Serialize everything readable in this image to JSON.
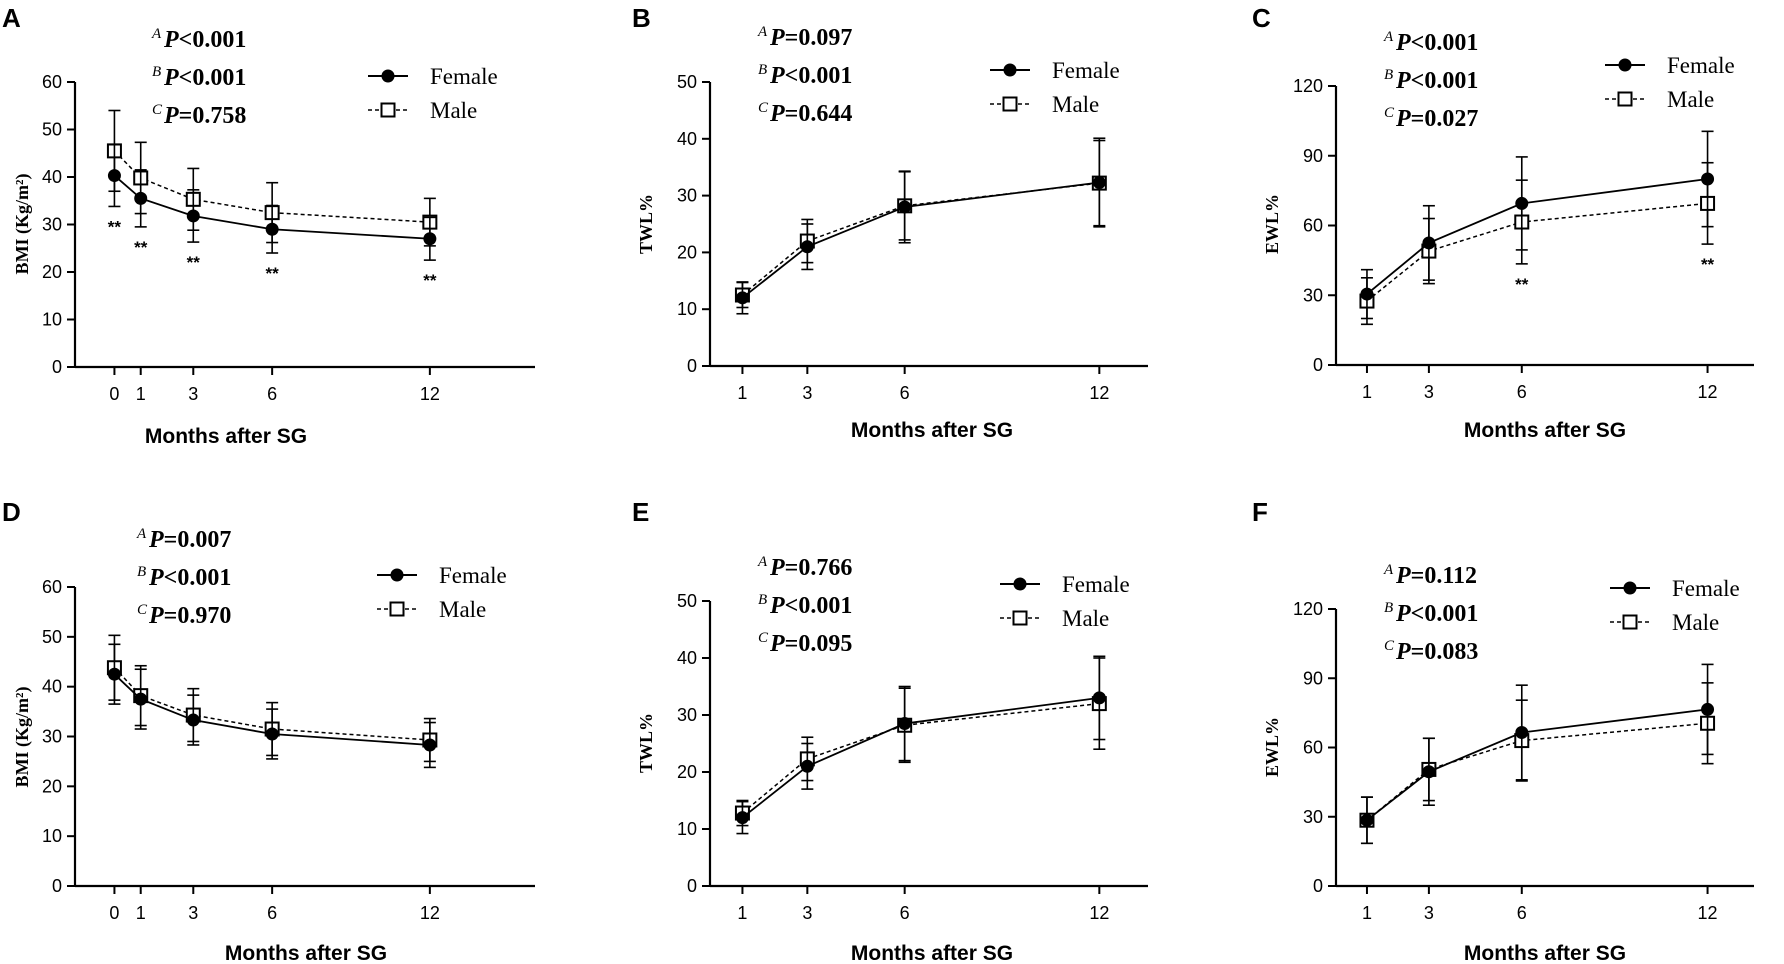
{
  "figure": {
    "legend": {
      "female": "Female",
      "male": "Male"
    },
    "colors": {
      "ink": "#000000",
      "marker_fill_male": "#ffffff"
    }
  },
  "chart_data": [
    {
      "panel": "A",
      "type": "line",
      "xlabel": "Months after SG",
      "ylabel": "BMI (Kg/m²)",
      "xticks": [
        0,
        1,
        3,
        6,
        12
      ],
      "xlim": [
        -1.5,
        16
      ],
      "ylim": [
        0,
        60
      ],
      "yticks": [
        0,
        10,
        20,
        30,
        40,
        50,
        60
      ],
      "stats": [
        [
          "A",
          "<0.001"
        ],
        [
          "B",
          "<0.001"
        ],
        [
          "C",
          "=0.758"
        ]
      ],
      "series": [
        {
          "name": "Female",
          "x": [
            0,
            1,
            3,
            6,
            12
          ],
          "values": [
            40.3,
            35.5,
            31.8,
            29.0,
            27.0
          ],
          "err": [
            6.5,
            6.0,
            5.5,
            5.0,
            4.5
          ]
        },
        {
          "name": "Male",
          "x": [
            0,
            1,
            3,
            6,
            12
          ],
          "values": [
            45.5,
            39.8,
            35.3,
            32.5,
            30.5
          ],
          "err": [
            8.5,
            7.5,
            6.5,
            6.3,
            5.0
          ]
        }
      ],
      "annotations": [
        [
          0,
          "**"
        ],
        [
          1,
          "**"
        ],
        [
          3,
          "**"
        ],
        [
          6,
          "**"
        ],
        [
          12,
          "**"
        ]
      ]
    },
    {
      "panel": "B",
      "type": "line",
      "xlabel": "Months after SG",
      "ylabel": "TWL%",
      "xticks": [
        1,
        3,
        6,
        12
      ],
      "xlim": [
        0,
        13.5
      ],
      "ylim": [
        0,
        50
      ],
      "yticks": [
        0,
        10,
        20,
        30,
        40,
        50
      ],
      "stats": [
        [
          "A",
          "=0.097"
        ],
        [
          "B",
          "<0.001"
        ],
        [
          "C",
          "=0.644"
        ]
      ],
      "series": [
        {
          "name": "Female",
          "x": [
            1,
            3,
            6,
            12
          ],
          "values": [
            12.0,
            21.0,
            28.0,
            32.3
          ],
          "err": [
            2.8,
            4.0,
            6.3,
            7.8
          ]
        },
        {
          "name": "Male",
          "x": [
            1,
            3,
            6,
            12
          ],
          "values": [
            12.5,
            22.0,
            28.2,
            32.2
          ],
          "err": [
            2.2,
            3.8,
            6.0,
            7.5
          ]
        }
      ],
      "annotations": []
    },
    {
      "panel": "C",
      "type": "line",
      "xlabel": "Months after SG",
      "ylabel": "EWL%",
      "xticks": [
        1,
        3,
        6,
        12
      ],
      "xlim": [
        0,
        13.5
      ],
      "ylim": [
        0,
        120
      ],
      "yticks": [
        0,
        30,
        60,
        90,
        120
      ],
      "stats": [
        [
          "A",
          "<0.001"
        ],
        [
          "B",
          "<0.001"
        ],
        [
          "C",
          "=0.027"
        ]
      ],
      "series": [
        {
          "name": "Female",
          "x": [
            1,
            3,
            6,
            12
          ],
          "values": [
            30.5,
            52.5,
            69.5,
            80.0
          ],
          "err": [
            10.5,
            16.0,
            20.0,
            20.5
          ]
        },
        {
          "name": "Male",
          "x": [
            1,
            3,
            6,
            12
          ],
          "values": [
            27.5,
            49.0,
            61.5,
            69.5
          ],
          "err": [
            10.0,
            14.0,
            18.0,
            17.5
          ]
        }
      ],
      "annotations": [
        [
          6,
          "**"
        ],
        [
          12,
          "**"
        ]
      ]
    },
    {
      "panel": "D",
      "type": "line",
      "xlabel": "Months after SG",
      "ylabel": "BMI (Kg/m²)",
      "xticks": [
        0,
        1,
        3,
        6,
        12
      ],
      "xlim": [
        -1.5,
        16
      ],
      "ylim": [
        0,
        60
      ],
      "yticks": [
        0,
        10,
        20,
        30,
        40,
        50,
        60
      ],
      "stats": [
        [
          "A",
          "=0.007"
        ],
        [
          "B",
          "<0.001"
        ],
        [
          "C",
          "=0.970"
        ]
      ],
      "series": [
        {
          "name": "Female",
          "x": [
            0,
            1,
            3,
            6,
            12
          ],
          "values": [
            42.5,
            37.5,
            33.3,
            30.5,
            28.3
          ],
          "err": [
            6.0,
            6.0,
            5.0,
            5.0,
            4.5
          ]
        },
        {
          "name": "Male",
          "x": [
            0,
            1,
            3,
            6,
            12
          ],
          "values": [
            43.8,
            38.2,
            34.3,
            31.5,
            29.3
          ],
          "err": [
            6.5,
            6.0,
            5.3,
            5.3,
            4.3
          ]
        }
      ],
      "annotations": []
    },
    {
      "panel": "E",
      "type": "line",
      "xlabel": "Months after SG",
      "ylabel": "TWL%",
      "xticks": [
        1,
        3,
        6,
        12
      ],
      "xlim": [
        0,
        13.5
      ],
      "ylim": [
        0,
        50
      ],
      "yticks": [
        0,
        10,
        20,
        30,
        40,
        50
      ],
      "stats": [
        [
          "A",
          "=0.766"
        ],
        [
          "B",
          "<0.001"
        ],
        [
          "C",
          "=0.095"
        ]
      ],
      "series": [
        {
          "name": "Female",
          "x": [
            1,
            3,
            6,
            12
          ],
          "values": [
            12.0,
            21.0,
            28.5,
            33.0
          ],
          "err": [
            2.8,
            4.0,
            6.5,
            7.3
          ]
        },
        {
          "name": "Male",
          "x": [
            1,
            3,
            6,
            12
          ],
          "values": [
            12.8,
            22.3,
            28.2,
            32.0
          ],
          "err": [
            2.2,
            3.8,
            6.5,
            8.0
          ]
        }
      ],
      "annotations": []
    },
    {
      "panel": "F",
      "type": "line",
      "xlabel": "Months after SG",
      "ylabel": "EWL%",
      "xticks": [
        1,
        3,
        6,
        12
      ],
      "xlim": [
        0,
        13.5
      ],
      "ylim": [
        0,
        120
      ],
      "yticks": [
        0,
        30,
        60,
        90,
        120
      ],
      "stats": [
        [
          "A",
          "=0.112"
        ],
        [
          "B",
          "<0.001"
        ],
        [
          "C",
          "=0.083"
        ]
      ],
      "series": [
        {
          "name": "Female",
          "x": [
            1,
            3,
            6,
            12
          ],
          "values": [
            28.5,
            49.5,
            66.5,
            76.5
          ],
          "err": [
            10.0,
            14.5,
            20.5,
            19.5
          ]
        },
        {
          "name": "Male",
          "x": [
            1,
            3,
            6,
            12
          ],
          "values": [
            28.5,
            50.5,
            63.0,
            70.5
          ],
          "err": [
            10.0,
            13.5,
            17.5,
            17.5
          ]
        }
      ],
      "annotations": []
    }
  ]
}
